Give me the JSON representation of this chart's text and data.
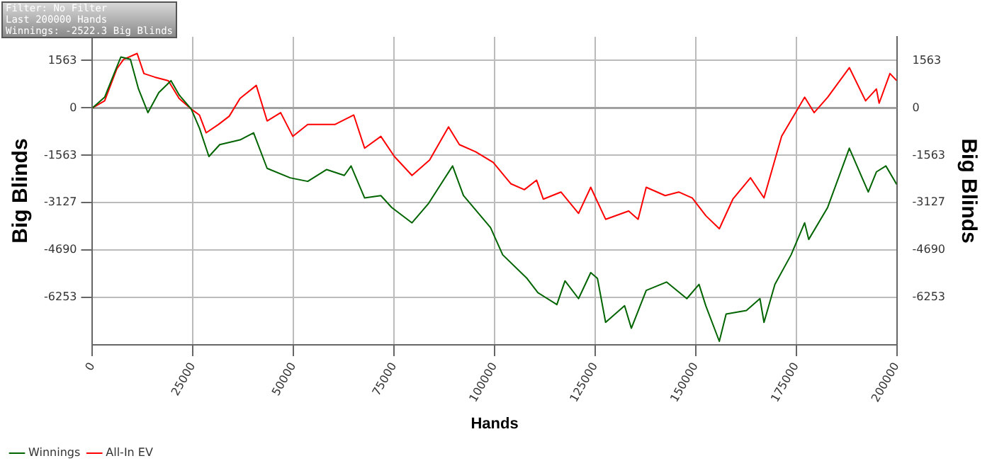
{
  "chart_data": {
    "type": "line",
    "xlabel": "Hands",
    "ylabel": "Big Blinds",
    "y2label": "Big Blinds",
    "annotations": [
      "Filter: No Filter",
      "Last  200000 Hands",
      "Winnings: -2522.3 Big Blinds"
    ],
    "xlim": [
      0,
      200000
    ],
    "xticks": [
      0,
      25000,
      50000,
      75000,
      100000,
      125000,
      150000,
      175000,
      200000
    ],
    "ylim": [
      -7816,
      2345
    ],
    "yticks": [
      1563,
      0,
      -1563,
      -3127,
      -4690,
      -6253
    ],
    "y2lim": [
      -7816,
      2345
    ],
    "y2ticks": [
      1563,
      0,
      -1563,
      -3127,
      -4690,
      -6253
    ],
    "grid": true,
    "legend": "bottom left",
    "marker": "none",
    "line_style": "solid",
    "ref_lines": [
      {
        "axis": "y",
        "value": 0,
        "label": null,
        "color": "#a0a0a0"
      }
    ],
    "series": [
      {
        "name": "Winnings",
        "color": "#006400",
        "x": [
          0,
          3030,
          5390,
          7070,
          9430,
          11450,
          13800,
          16500,
          19530,
          21550,
          24580,
          26600,
          28960,
          31650,
          36700,
          40070,
          43430,
          49160,
          53540,
          58250,
          62630,
          64310,
          67680,
          71720,
          74410,
          79460,
          83500,
          89560,
          92260,
          98990,
          102020,
          108080,
          110780,
          115490,
          117510,
          120880,
          123910,
          125590,
          127610,
          132330,
          134010,
          137710,
          142760,
          147810,
          150840,
          152530,
          155890,
          157580,
          162630,
          165990,
          167000,
          169700,
          173740,
          177110,
          178120,
          182830,
          188220,
          192930,
          194950,
          197310,
          200000
        ],
        "values": [
          0,
          352,
          1133,
          1680,
          1602,
          625,
          -156,
          508,
          899,
          430,
          -39,
          -664,
          -1602,
          -1211,
          -1055,
          -820,
          -1993,
          -2305,
          -2422,
          -2032,
          -2227,
          -1914,
          -2969,
          -2891,
          -3282,
          -3790,
          -3165,
          -1914,
          -2891,
          -3946,
          -4845,
          -5626,
          -6095,
          -6486,
          -5704,
          -6290,
          -5431,
          -5626,
          -7072,
          -6525,
          -7267,
          -6017,
          -5743,
          -6290,
          -5821,
          -6525,
          -7697,
          -6798,
          -6681,
          -6290,
          -7072,
          -5821,
          -4845,
          -3790,
          -4337,
          -3282,
          -1328,
          -2774,
          -2110,
          -1914,
          -2522
        ]
      },
      {
        "name": "All-In EV",
        "color": "#ff0000",
        "x": [
          0,
          3030,
          6060,
          7740,
          11110,
          12790,
          15490,
          18860,
          21550,
          24580,
          26600,
          28280,
          31310,
          34010,
          36700,
          40740,
          43430,
          46800,
          49830,
          53540,
          60270,
          64980,
          67680,
          71720,
          75080,
          79460,
          83840,
          88550,
          91250,
          95290,
          99660,
          104040,
          107410,
          110440,
          112120,
          116500,
          120880,
          123910,
          127610,
          133340,
          135690,
          137710,
          142430,
          145790,
          149160,
          152530,
          155890,
          159260,
          163640,
          167000,
          171380,
          177110,
          179460,
          182830,
          188220,
          192260,
          194950,
          195630,
          198320,
          200000
        ],
        "values": [
          0,
          234,
          1289,
          1602,
          1797,
          1133,
          1016,
          899,
          313,
          -39,
          -234,
          -820,
          -547,
          -273,
          313,
          742,
          -430,
          -156,
          -938,
          -547,
          -547,
          -234,
          -1328,
          -938,
          -1602,
          -2227,
          -1719,
          -625,
          -1211,
          -1446,
          -1797,
          -2500,
          -2696,
          -2383,
          -3008,
          -2774,
          -3477,
          -2618,
          -3673,
          -3399,
          -3673,
          -2618,
          -2891,
          -2774,
          -2969,
          -3555,
          -3985,
          -3008,
          -2305,
          -2969,
          -938,
          352,
          -156,
          352,
          1328,
          234,
          625,
          156,
          1133,
          899
        ]
      }
    ]
  }
}
